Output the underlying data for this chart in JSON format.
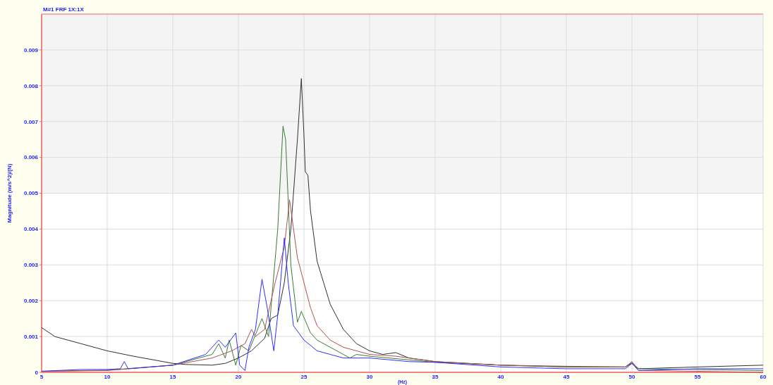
{
  "chart_data": {
    "type": "line",
    "title": "M#1 FRF 1X:1X",
    "xlabel": "(Hz)",
    "ylabel": "Magnitude (m/s^2)/(N)",
    "xlim": [
      5,
      60
    ],
    "xticks": [
      5,
      10,
      15,
      20,
      25,
      30,
      35,
      40,
      45,
      50,
      55,
      60
    ],
    "ylim": [
      0,
      0.01
    ],
    "yticks": [
      0,
      0.001,
      0.002,
      0.003,
      0.004,
      0.005,
      0.006,
      0.007,
      0.008,
      0.009
    ],
    "grid": true,
    "marker": "none",
    "line_style": "solid",
    "bands": [
      {
        "axis": "y",
        "from": 0.005,
        "to": 0.01,
        "color": "#f4f4f4"
      }
    ],
    "series": [
      {
        "color": "#303030",
        "x": [
          5,
          6,
          7,
          8,
          10,
          12,
          15,
          16,
          18,
          19,
          20,
          21,
          22,
          22.5,
          23,
          23.5,
          24,
          24.5,
          24.8,
          25,
          25.1,
          25.3,
          25.5,
          26,
          26.5,
          27,
          28,
          29,
          30,
          31,
          32,
          33,
          35,
          40,
          45,
          49.5,
          50,
          50.5,
          55,
          60
        ],
        "values": [
          0.00125,
          0.001,
          0.0009,
          0.0008,
          0.0006,
          0.00045,
          0.00025,
          0.00022,
          0.0002,
          0.00025,
          0.0004,
          0.0006,
          0.00095,
          0.0015,
          0.0016,
          0.0025,
          0.004,
          0.0065,
          0.0082,
          0.0066,
          0.0056,
          0.0055,
          0.0045,
          0.0031,
          0.0025,
          0.0019,
          0.0012,
          0.0008,
          0.0006,
          0.0005,
          0.00055,
          0.0004,
          0.0003,
          0.0002,
          0.00015,
          0.00015,
          0.00025,
          0.0001,
          0.00015,
          0.0002
        ]
      },
      {
        "color": "#3a7a3a",
        "x": [
          5,
          10,
          15,
          18,
          18.5,
          19,
          19.3,
          19.8,
          20.2,
          20.8,
          21.8,
          22.3,
          23,
          23.4,
          23.6,
          24,
          24.5,
          24.8,
          25.5,
          26,
          27,
          28.5,
          29,
          30,
          35,
          40,
          45,
          49.5,
          50,
          50.5,
          55,
          60
        ],
        "values": [
          3e-05,
          6e-05,
          0.0002,
          0.0005,
          0.0008,
          0.0004,
          0.0009,
          0.0002,
          0.00075,
          0.0006,
          0.0015,
          0.001,
          0.004,
          0.00687,
          0.0065,
          0.003,
          0.0014,
          0.0017,
          0.0011,
          0.0009,
          0.0007,
          0.0004,
          0.0005,
          0.00045,
          0.00028,
          0.0002,
          0.00015,
          0.00015,
          0.00028,
          0.0001,
          8e-05,
          5e-05
        ]
      },
      {
        "color": "#b05050",
        "x": [
          5,
          10,
          15,
          18,
          19.5,
          20.5,
          21,
          21.3,
          22,
          22.8,
          23.5,
          23.9,
          24.5,
          25,
          25.5,
          26,
          27,
          28,
          30,
          32,
          35,
          40,
          45,
          49.5,
          50,
          50.5,
          55,
          60
        ],
        "values": [
          3e-05,
          5e-05,
          0.0002,
          0.0004,
          0.0006,
          0.0008,
          0.0012,
          0.001,
          0.0012,
          0.0025,
          0.0035,
          0.00482,
          0.0032,
          0.0025,
          0.0018,
          0.0013,
          0.0009,
          0.0007,
          0.0005,
          0.00045,
          0.0003,
          0.0002,
          0.00017,
          0.00015,
          0.0003,
          5e-05,
          3e-05,
          0
        ]
      },
      {
        "color": "#3030ff",
        "x": [
          5,
          8,
          10,
          11,
          11.3,
          11.6,
          15,
          17.5,
          18.5,
          19,
          19.8,
          20.1,
          20.5,
          20.8,
          21.3,
          21.8,
          22.2,
          22.7,
          23,
          23.5,
          23.8,
          24.2,
          25,
          26,
          27,
          28,
          30,
          33,
          35,
          40,
          45,
          49.5,
          50,
          50.5,
          55,
          58,
          60
        ],
        "values": [
          3e-05,
          8e-05,
          8e-05,
          0.0001,
          0.0003,
          0.0001,
          0.0002,
          0.0005,
          0.0009,
          0.0007,
          0.0011,
          0.0002,
          5e-05,
          0.0007,
          0.0012,
          0.0026,
          0.0018,
          0.0006,
          0.0016,
          0.00375,
          0.0025,
          0.0013,
          0.0009,
          0.0006,
          0.0005,
          0.0004,
          0.0004,
          0.0003,
          0.00028,
          0.00015,
          0.0001,
          0.0001,
          0.00025,
          5e-05,
          0.0001,
          0.0001,
          0.0001
        ]
      }
    ]
  }
}
